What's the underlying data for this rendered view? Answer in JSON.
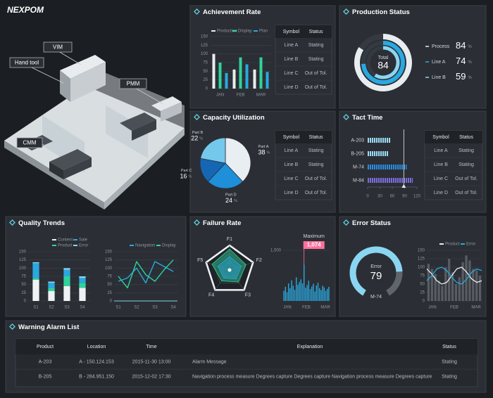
{
  "logo": "NEXPOM",
  "factory": {
    "labels": [
      "VIM",
      "Hand tool",
      "PMM",
      "CMM"
    ]
  },
  "achievement": {
    "title": "Achievement Rate",
    "chart": {
      "type": "bar",
      "categories": [
        "JAN",
        "FEB",
        "MAR"
      ],
      "series": [
        {
          "name": "Production",
          "color": "#e8edf0",
          "values": [
            100,
            55,
            55
          ]
        },
        {
          "name": "Display",
          "color": "#2fd39a",
          "values": [
            75,
            90,
            90
          ]
        },
        {
          "name": "Plan",
          "color": "#2aa8e0",
          "values": [
            45,
            70,
            48
          ]
        }
      ],
      "ylim": [
        0,
        150
      ],
      "yticks": [
        0,
        25,
        50,
        75,
        100,
        125,
        150
      ],
      "grid": true
    },
    "table": {
      "header": [
        "Symbol",
        "Status"
      ],
      "rows": [
        [
          "Line A",
          "Stating"
        ],
        [
          "Line B",
          "Stating"
        ],
        [
          "Line C",
          "Out of Tol."
        ],
        [
          "Line D",
          "Out of Tol."
        ]
      ]
    }
  },
  "production": {
    "title": "Production Status",
    "chart": {
      "type": "radial",
      "total": {
        "label": "Total",
        "value": 84
      },
      "unit": "%",
      "series": [
        {
          "name": "Process",
          "color": "#e8edf0",
          "value": 84
        },
        {
          "name": "Line A",
          "color": "#2aa8e0",
          "value": 74
        },
        {
          "name": "Line B",
          "color": "#8ad6f2",
          "value": 59
        }
      ]
    }
  },
  "capacity": {
    "title": "Capacity Utilization",
    "chart": {
      "type": "pie",
      "unit": "%",
      "slices": [
        {
          "name": "Part A",
          "value": 38,
          "color": "#e8eef2"
        },
        {
          "name": "Part D",
          "value": 24,
          "color": "#1e8fd8"
        },
        {
          "name": "Part C",
          "value": 16,
          "color": "#1566b3"
        },
        {
          "name": "Part B",
          "value": 22,
          "color": "#74c8ec"
        }
      ]
    },
    "table": {
      "header": [
        "Symbol",
        "Status"
      ],
      "rows": [
        [
          "Line A",
          "Stating"
        ],
        [
          "Line B",
          "Stating"
        ],
        [
          "Line C",
          "Out of Tol."
        ],
        [
          "Line D",
          "Out of Tol."
        ]
      ]
    }
  },
  "tact": {
    "title": "Tact Time",
    "chart": {
      "type": "hbar",
      "categories": [
        "A-203",
        "B-205",
        "M-74",
        "M-84"
      ],
      "values": [
        55,
        50,
        95,
        110
      ],
      "colors": [
        "#9fdcf5",
        "#9fdcf5",
        "#2a8ce0",
        "#7a6fe0"
      ],
      "xlim": [
        0,
        120
      ],
      "xticks": [
        0,
        30,
        60,
        90,
        120
      ],
      "target": 88
    },
    "table": {
      "header": [
        "Symbol",
        "Status"
      ],
      "rows": [
        [
          "Line A",
          "Stating"
        ],
        [
          "Line B",
          "Stating"
        ],
        [
          "Line C",
          "Out of Tol."
        ],
        [
          "Line D",
          "Out of Tol."
        ]
      ]
    }
  },
  "quality": {
    "title": "Quality Trends",
    "charts": [
      {
        "type": "stacked_bar",
        "categories": [
          "S1",
          "S2",
          "S3",
          "S4"
        ],
        "series": [
          {
            "name": "Content",
            "color": "#eef2f4",
            "values": [
              65,
              30,
              45,
              40
            ]
          },
          {
            "name": "Product",
            "color": "#2fd39a",
            "values": [
              5,
              10,
              30,
              15
            ]
          },
          {
            "name": "Sale",
            "color": "#2aa8e0",
            "values": [
              45,
              15,
              20,
              15
            ]
          },
          {
            "name": "Error",
            "color": "#8ad6f2",
            "values": [
              3,
              4,
              5,
              5
            ]
          }
        ],
        "ylim": [
          0,
          150
        ],
        "yticks": [
          0,
          25,
          50,
          75,
          100,
          125,
          150
        ],
        "grid": true
      },
      {
        "type": "line",
        "categories": [
          "S1",
          null,
          "S2",
          null,
          "S3",
          null,
          "S4"
        ],
        "series": [
          {
            "name": "Navigation",
            "color": "#2aa8e0",
            "values": [
              60,
              70,
              100,
              55,
              120,
              105,
              90
            ]
          },
          {
            "name": "Display",
            "color": "#2fd39a",
            "values": [
              75,
              40,
              120,
              80,
              60,
              95,
              125
            ]
          }
        ],
        "ylim": [
          0,
          150
        ],
        "yticks": [
          0,
          25,
          50,
          75,
          100,
          125,
          150
        ],
        "grid": true
      }
    ]
  },
  "failure": {
    "title": "Failure Rate",
    "charts": [
      {
        "type": "radar",
        "axes": [
          "F1",
          "F2",
          "F3",
          "F4",
          "F5"
        ],
        "rlim": [
          0,
          100
        ],
        "series": [
          {
            "color": "#2fd39a",
            "values": [
              85,
              70,
              60,
              55,
              75
            ]
          },
          {
            "color": "#2aa8e0",
            "values": [
              55,
              50,
              45,
              40,
              50
            ]
          }
        ]
      },
      {
        "type": "column",
        "x_labels": [
          "JAN",
          "FEB",
          "MAR"
        ],
        "color": "#2aa8e0",
        "values": [
          300,
          420,
          260,
          520,
          380,
          610,
          450,
          330,
          700,
          480,
          560,
          640,
          520,
          1074,
          390,
          470,
          600,
          350,
          430,
          510,
          280,
          460,
          540,
          380,
          320,
          450,
          400,
          300,
          360,
          420
        ],
        "value_labels": [
          null,
          null,
          null,
          null,
          null,
          null,
          null,
          null,
          null,
          null,
          null,
          null,
          null,
          "1,074",
          null,
          null,
          null,
          null,
          null,
          null,
          null,
          null,
          null,
          null,
          null,
          null,
          null,
          null,
          null,
          null
        ],
        "annotation": "Maximum",
        "ylim": [
          0,
          1500
        ],
        "yticks": [
          {
            "value": 1500,
            "label": "1,500"
          }
        ],
        "grid": true
      }
    ]
  },
  "error": {
    "title": "Error Status",
    "charts": [
      {
        "type": "gauge",
        "label": "Error",
        "value": 79,
        "name": "M-74",
        "color": "#8ad6f2"
      },
      {
        "type": "combo",
        "x_labels": [
          "JAN",
          "FEB",
          "MAR"
        ],
        "bars": {
          "color": "#585d63",
          "values": [
            110,
            95,
            80,
            60,
            45,
            100,
            125,
            85,
            50,
            70,
            115,
            135,
            120,
            95,
            90,
            75
          ]
        },
        "series": [
          {
            "name": "Product",
            "color": "#e8edf0",
            "values": [
              95,
              80,
              60,
              50,
              55,
              75,
              95,
              100,
              85,
              65,
              55,
              60
            ]
          },
          {
            "name": "Error",
            "color": "#2aa8e0",
            "values": [
              60,
              75,
              95,
              100,
              90,
              70,
              55,
              50,
              65,
              85,
              95,
              90
            ]
          }
        ],
        "ylim": [
          0,
          150
        ],
        "yticks": [
          0,
          25,
          50,
          75,
          100,
          125,
          150
        ],
        "grid": true
      }
    ]
  },
  "warning": {
    "title": "Warning Alarm List",
    "table": {
      "header": [
        "Product",
        "Location",
        "Time",
        "Explanation",
        "Status"
      ],
      "rows": [
        [
          "A-203",
          "A - 150.124.153",
          "2015-11-30 13:00",
          "Alarm Message",
          "Stating"
        ],
        [
          "B-205",
          "B - 284.951.150",
          "2015-12-02 17:30",
          "Navigation process measure Degrees capture Degrees capture Navigation process measure Degrees capture",
          "Stating"
        ]
      ]
    }
  }
}
